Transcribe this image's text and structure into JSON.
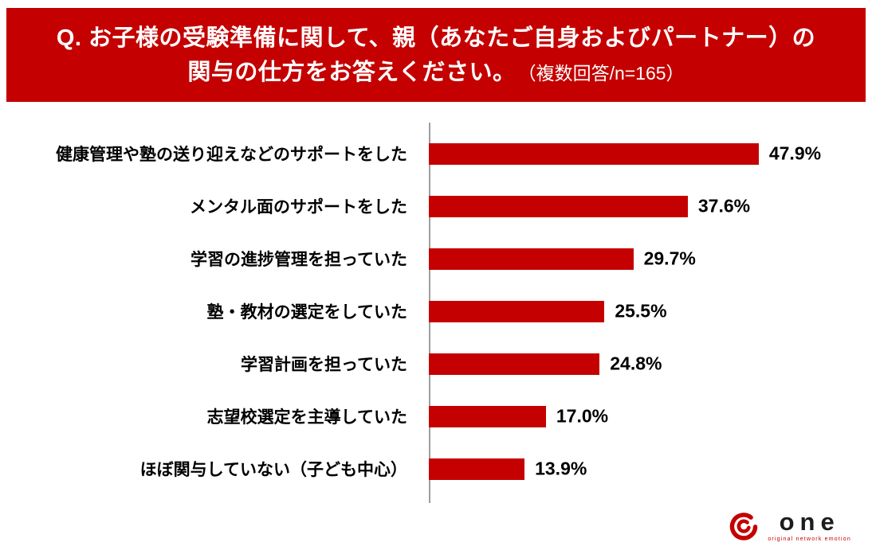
{
  "header": {
    "line1": "Q. お子様の受験準備に関して、親（あなたご自身およびパートナー）の",
    "line2_main": "関与の仕方をお答えください。",
    "line2_note": "（複数回答/n=165）",
    "background_color": "#c40000",
    "text_color": "#ffffff"
  },
  "chart_data": {
    "type": "bar",
    "orientation": "horizontal",
    "title": "お子様の受験準備に関して、親（あなたご自身およびパートナー）の関与の仕方をお答えください。（複数回答/n=165）",
    "sample_note": "複数回答/n=165",
    "categories": [
      "健康管理や塾の送り迎えなどのサポートをした",
      "メンタル面のサポートをした",
      "学習の進捗管理を担っていた",
      "塾・教材の選定をしていた",
      "学習計画を担っていた",
      "志望校選定を主導していた",
      "ほぼ関与していない（子ども中心）"
    ],
    "values": [
      47.9,
      37.6,
      29.7,
      25.5,
      24.8,
      17.0,
      13.9
    ],
    "value_labels": [
      "47.9%",
      "37.6%",
      "29.7%",
      "25.5%",
      "24.8%",
      "17.0%",
      "13.9%"
    ],
    "xlim": [
      0,
      50
    ],
    "bar_color": "#c40000",
    "axis_color": "#9e9e9e",
    "grid": false,
    "legend": false
  },
  "logo": {
    "text": "one",
    "tagline": "original network emotion",
    "accent_color": "#c40000"
  }
}
